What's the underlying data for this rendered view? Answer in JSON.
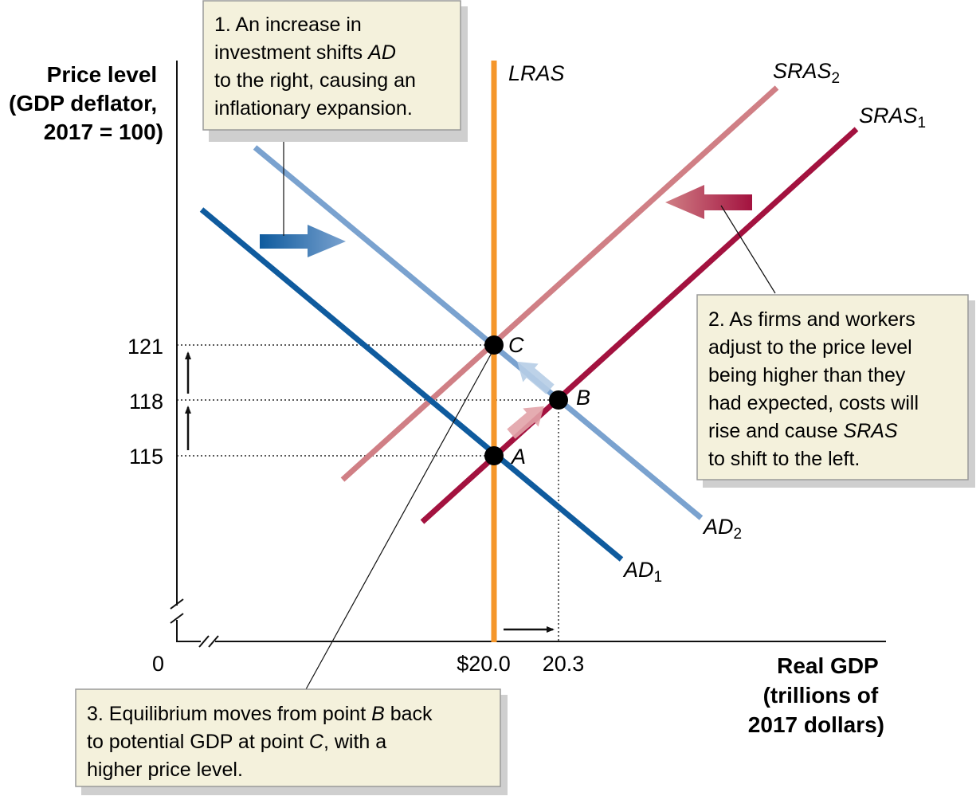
{
  "axes": {
    "y_title": [
      "Price level",
      "(GDP deflator,",
      "2017 = 100)"
    ],
    "x_title": [
      "Real GDP",
      "(trillions of",
      "2017 dollars)"
    ],
    "origin": "0",
    "y_ticks": [
      "121",
      "118",
      "115"
    ],
    "x_ticks": [
      "$20.0",
      "20.3"
    ]
  },
  "curves": {
    "lras": {
      "name": "LRAS",
      "color": "#f5962a"
    },
    "sras1": {
      "name": "SRAS",
      "sub": "1",
      "color": "#a3123f"
    },
    "sras2": {
      "name": "SRAS",
      "sub": "2",
      "color": "#d07f85"
    },
    "ad1": {
      "name": "AD",
      "sub": "1",
      "color": "#0f5b9e"
    },
    "ad2": {
      "name": "AD",
      "sub": "2",
      "color": "#7aa2cf"
    }
  },
  "points": {
    "a": "A",
    "b": "B",
    "c": "C"
  },
  "callouts": {
    "c1": {
      "l1": "1. An increase in",
      "l2a": "investment shifts ",
      "l2b": "AD",
      "l3": "to the right, causing an",
      "l4": "inflationary expansion."
    },
    "c2": {
      "l1": "2. As firms and workers",
      "l2": "adjust to the price level",
      "l3": "being higher than they",
      "l4": "had expected, costs will",
      "l5a": "rise and cause ",
      "l5b": "SRAS",
      "l6": "to shift to the left."
    },
    "c3": {
      "l1a": "3. Equilibrium moves from point ",
      "l1b": "B",
      "l1c": " back",
      "l2a": "to potential GDP at point ",
      "l2b": "C",
      "l2c": ", with a",
      "l3": "higher price level."
    }
  },
  "colors": {
    "callout_bg": "#f4f1dc",
    "callout_border": "#9a9a9a",
    "shadow": "#cfcfcf"
  }
}
